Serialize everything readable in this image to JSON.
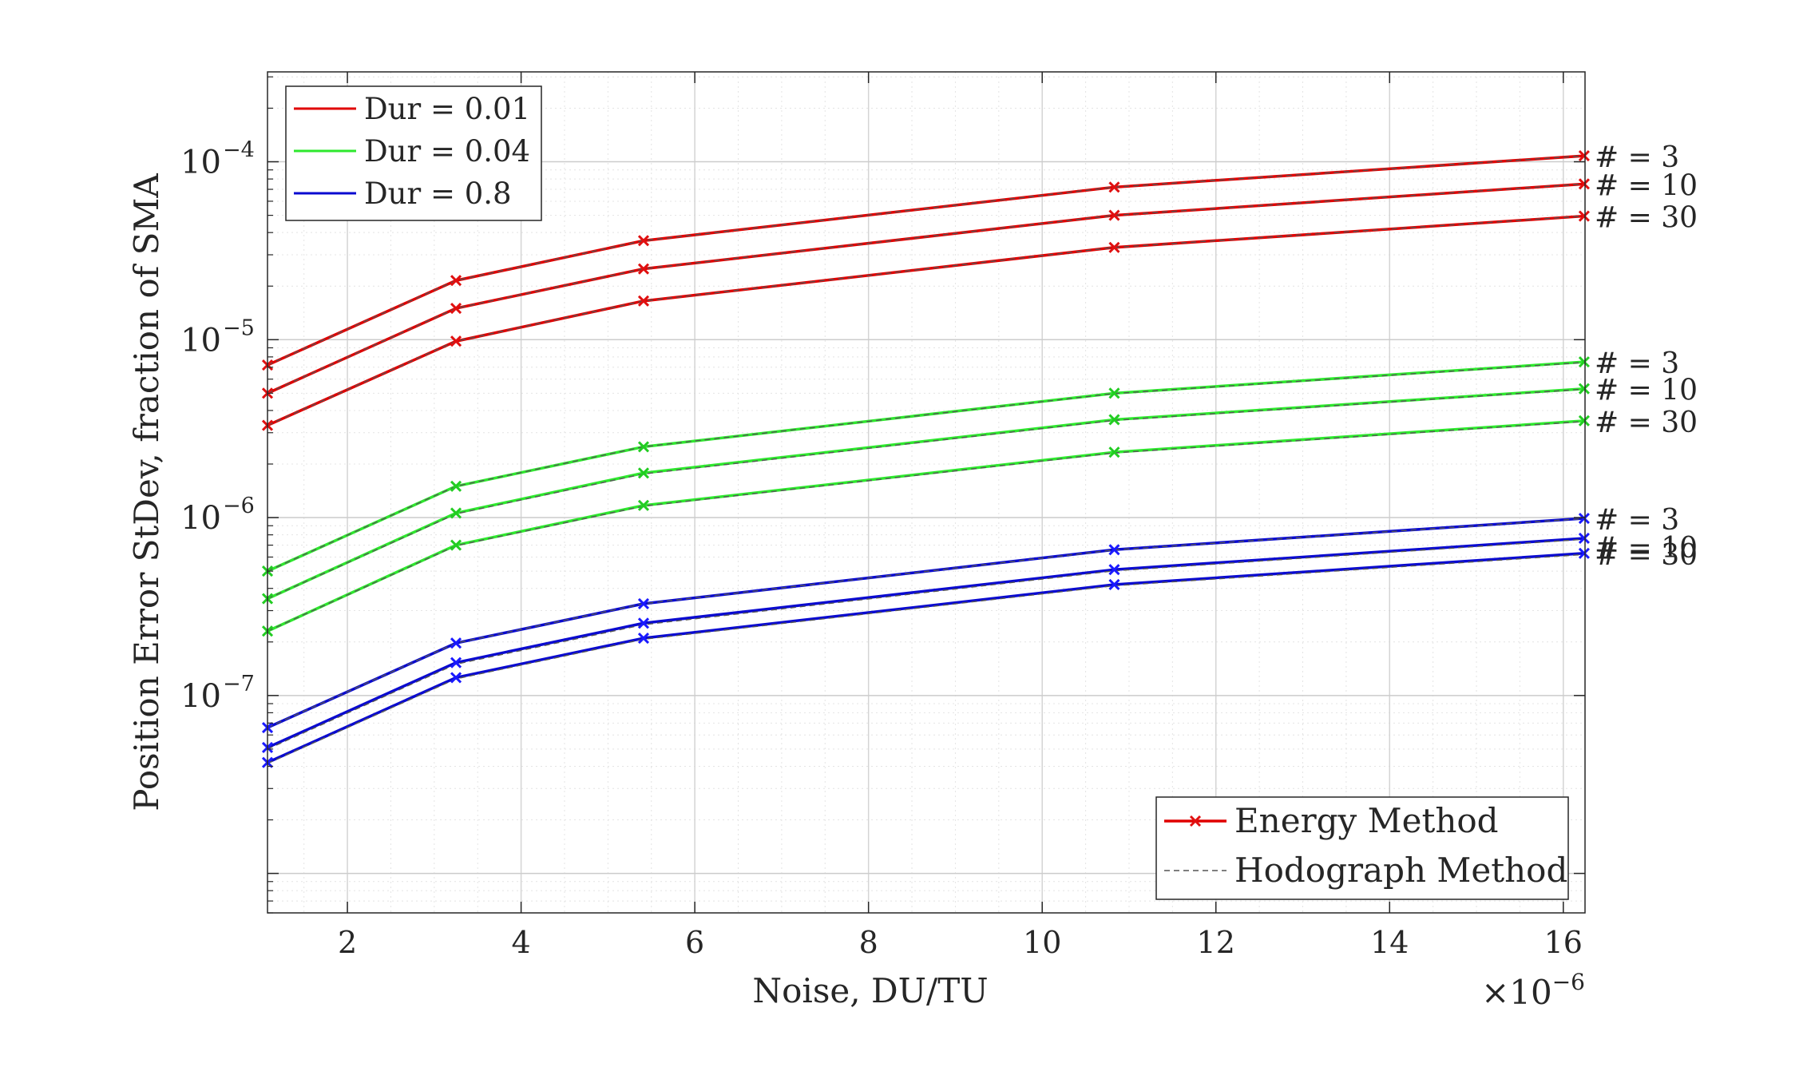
{
  "chart_data": {
    "type": "line",
    "xlabel": "Noise, DU/TU",
    "x_multiplier_label": "×10",
    "x_multiplier_exp": "−6",
    "ylabel": "Position Error StDev, fraction of SMA",
    "xlim": [
      1.08,
      16.25
    ],
    "ylim": [
      6e-09,
      0.00032
    ],
    "yscale": "log",
    "grid": true,
    "x": [
      1.08,
      3.25,
      5.41,
      10.83,
      16.24
    ],
    "x_ticks": [
      {
        "value": 2,
        "label": "2"
      },
      {
        "value": 4,
        "label": "4"
      },
      {
        "value": 6,
        "label": "6"
      },
      {
        "value": 8,
        "label": "8"
      },
      {
        "value": 10,
        "label": "10"
      },
      {
        "value": 12,
        "label": "12"
      },
      {
        "value": 14,
        "label": "14"
      },
      {
        "value": 16,
        "label": "16"
      }
    ],
    "y_ticks": [
      {
        "value": 1e-07,
        "base": "10",
        "exp": "−7"
      },
      {
        "value": 1e-06,
        "base": "10",
        "exp": "−6"
      },
      {
        "value": 1e-05,
        "base": "10",
        "exp": "−5"
      },
      {
        "value": 0.0001,
        "base": "10",
        "exp": "−4"
      }
    ],
    "groups": [
      {
        "label": "Dur = 0.01",
        "color": "#e00000",
        "marker_color": "#e01010",
        "series": [
          {
            "count_label": "# = 3",
            "energy": [
              7.2e-06,
              2.15e-05,
              3.6e-05,
              7.2e-05,
              0.000108
            ],
            "hodograph": [
              7.2e-06,
              2.15e-05,
              3.6e-05,
              7.2e-05,
              0.000108
            ]
          },
          {
            "count_label": "# = 10",
            "energy": [
              5e-06,
              1.5e-05,
              2.5e-05,
              5e-05,
              7.5e-05
            ],
            "hodograph": [
              5e-06,
              1.5e-05,
              2.5e-05,
              5e-05,
              7.5e-05
            ]
          },
          {
            "count_label": "# = 30",
            "energy": [
              3.3e-06,
              9.8e-06,
              1.65e-05,
              3.3e-05,
              4.95e-05
            ],
            "hodograph": [
              3.3e-06,
              9.8e-06,
              1.65e-05,
              3.3e-05,
              4.95e-05
            ]
          }
        ]
      },
      {
        "label": "Dur = 0.04",
        "color": "#2ee82e",
        "marker_color": "#22cc22",
        "series": [
          {
            "count_label": "# = 3",
            "energy": [
              5e-07,
              1.5e-06,
              2.5e-06,
              5e-06,
              7.5e-06
            ],
            "hodograph": [
              5e-07,
              1.5e-06,
              2.5e-06,
              4.98e-06,
              7.45e-06
            ]
          },
          {
            "count_label": "# = 10",
            "energy": [
              3.5e-07,
              1.06e-06,
              1.78e-06,
              3.55e-06,
              5.3e-06
            ],
            "hodograph": [
              3.5e-07,
              1.05e-06,
              1.76e-06,
              3.52e-06,
              5.27e-06
            ]
          },
          {
            "count_label": "# = 30",
            "energy": [
              2.3e-07,
              7e-07,
              1.17e-06,
              2.33e-06,
              3.5e-06
            ],
            "hodograph": [
              2.3e-07,
              6.95e-07,
              1.16e-06,
              2.31e-06,
              3.47e-06
            ]
          }
        ]
      },
      {
        "label": "Dur = 0.8",
        "color": "#0a0ad0",
        "marker_color": "#1a1aff",
        "series": [
          {
            "count_label": "# = 3",
            "energy": [
              6.6e-08,
              1.97e-07,
              3.28e-07,
              6.6e-07,
              9.9e-07
            ],
            "hodograph": [
              6.6e-08,
              1.97e-07,
              3.28e-07,
              6.58e-07,
              9.87e-07
            ]
          },
          {
            "count_label": "# = 10",
            "energy": [
              5.1e-08,
              1.53e-07,
              2.55e-07,
              5.1e-07,
              7.65e-07
            ],
            "hodograph": [
              5e-08,
              1.5e-07,
              2.5e-07,
              5.02e-07,
              7.55e-07
            ]
          },
          {
            "count_label": "# = 30",
            "energy": [
              4.2e-08,
              1.26e-07,
              2.1e-07,
              4.2e-07,
              6.3e-07
            ],
            "hodograph": [
              4.15e-08,
              1.24e-07,
              2.07e-07,
              4.14e-07,
              6.2e-07
            ]
          }
        ]
      }
    ],
    "legend_duration": {
      "placement": "top-left",
      "entries": [
        "Dur = 0.01",
        "Dur = 0.04",
        "Dur = 0.8"
      ]
    },
    "legend_method": {
      "placement": "bottom-right",
      "entries": [
        {
          "label": "Energy Method",
          "style": "solid-marker"
        },
        {
          "label": "Hodograph Method",
          "style": "dashed"
        }
      ]
    }
  }
}
